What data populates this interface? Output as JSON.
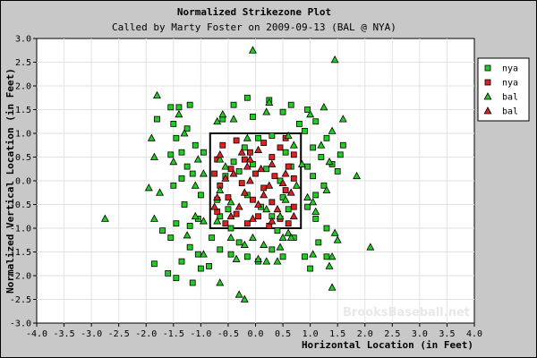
{
  "chart_data": {
    "type": "scatter",
    "title": "Normalized Strikezone Plot",
    "subtitle": "Called by Marty Foster on 2009-09-13 (BAL @ NYA)",
    "xlabel": "Horizontal Location (in Feet)",
    "ylabel": "Normalized Vertical Location (in Feet)",
    "xlim": [
      -4.0,
      4.0
    ],
    "ylim": [
      -3.0,
      3.0
    ],
    "x_ticks": [
      "-4.0",
      "-3.5",
      "-3.0",
      "-2.5",
      "-2.0",
      "-1.5",
      "-1.0",
      "-0.5",
      "0.0",
      "0.5",
      "1.0",
      "1.5",
      "2.0",
      "2.5",
      "3.0",
      "3.5",
      "4.0"
    ],
    "y_ticks": [
      "3.0",
      "2.5",
      "2.0",
      "1.5",
      "1.0",
      "0.5",
      "0.0",
      "-0.5",
      "-1.0",
      "-1.5",
      "-2.0",
      "-2.5",
      "-3.0"
    ],
    "grid": true,
    "legend_position": "top-right",
    "watermark": "BrooksBaseball.net",
    "strike_zone": {
      "x": [
        -0.83,
        0.83
      ],
      "y": [
        -1.0,
        1.0
      ]
    },
    "series": [
      {
        "name": "nya",
        "marker": "square",
        "color": "#22cc22",
        "points": [
          [
            -1.55,
            1.55
          ],
          [
            -1.4,
            1.55
          ],
          [
            -1.2,
            1.6
          ],
          [
            -1.8,
            1.3
          ],
          [
            -1.5,
            1.2
          ],
          [
            -1.25,
            1.1
          ],
          [
            -1.45,
            0.9
          ],
          [
            -1.55,
            0.55
          ],
          [
            -1.35,
            0.6
          ],
          [
            -1.1,
            0.75
          ],
          [
            -0.95,
            0.6
          ],
          [
            -1.25,
            0.3
          ],
          [
            -1.15,
            0.15
          ],
          [
            -1.35,
            0.05
          ],
          [
            -1.5,
            -0.1
          ],
          [
            -1.0,
            -0.3
          ],
          [
            -1.3,
            -0.5
          ],
          [
            -1.05,
            -0.8
          ],
          [
            -1.2,
            -0.95
          ],
          [
            -1.45,
            -0.9
          ],
          [
            -1.7,
            -1.05
          ],
          [
            -1.55,
            -1.2
          ],
          [
            -1.2,
            -1.4
          ],
          [
            -1.05,
            -1.55
          ],
          [
            -1.35,
            -1.7
          ],
          [
            -1.0,
            -1.85
          ],
          [
            -1.85,
            -1.75
          ],
          [
            -1.6,
            -1.95
          ],
          [
            -1.45,
            -2.05
          ],
          [
            -1.15,
            -2.15
          ],
          [
            -0.85,
            -1.8
          ],
          [
            -0.65,
            -1.45
          ],
          [
            -0.45,
            -1.55
          ],
          [
            -0.3,
            -1.3
          ],
          [
            -0.15,
            -1.6
          ],
          [
            0.05,
            -1.7
          ],
          [
            0.3,
            -1.45
          ],
          [
            0.5,
            -1.6
          ],
          [
            0.7,
            -1.2
          ],
          [
            0.4,
            -1.05
          ],
          [
            -0.45,
            -1.0
          ],
          [
            -0.65,
            -0.75
          ],
          [
            -0.7,
            -0.4
          ],
          [
            -0.55,
            0.1
          ],
          [
            -0.4,
            0.4
          ],
          [
            -0.2,
            0.7
          ],
          [
            0.05,
            0.9
          ],
          [
            0.3,
            0.95
          ],
          [
            0.55,
            0.6
          ],
          [
            0.65,
            0.3
          ],
          [
            0.45,
            0.0
          ],
          [
            0.5,
            -0.35
          ],
          [
            0.6,
            -0.6
          ],
          [
            0.3,
            -0.75
          ],
          [
            0.1,
            -0.55
          ],
          [
            -0.15,
            -0.3
          ],
          [
            -0.3,
            0.2
          ],
          [
            -0.05,
            0.35
          ],
          [
            0.2,
            0.25
          ],
          [
            -0.5,
            -0.6
          ],
          [
            0.95,
            1.5
          ],
          [
            1.1,
            1.25
          ],
          [
            0.9,
            1.05
          ],
          [
            1.3,
            0.9
          ],
          [
            1.05,
            0.7
          ],
          [
            1.2,
            0.5
          ],
          [
            0.95,
            0.3
          ],
          [
            1.05,
            0.1
          ],
          [
            1.25,
            -0.1
          ],
          [
            1.1,
            -0.3
          ],
          [
            0.95,
            -0.55
          ],
          [
            1.1,
            -0.8
          ],
          [
            1.3,
            -1.0
          ],
          [
            1.15,
            -1.3
          ],
          [
            1.3,
            -1.6
          ],
          [
            1.0,
            -1.85
          ],
          [
            1.55,
            0.55
          ],
          [
            1.6,
            0.75
          ],
          [
            1.4,
            0.35
          ],
          [
            1.5,
            0.2
          ],
          [
            -0.6,
            1.3
          ],
          [
            -0.4,
            1.6
          ],
          [
            -0.15,
            1.75
          ],
          [
            -0.05,
            1.35
          ],
          [
            0.25,
            1.7
          ],
          [
            0.5,
            1.45
          ],
          [
            0.8,
            1.2
          ],
          [
            0.65,
            1.6
          ],
          [
            0.9,
            -1.6
          ],
          [
            -0.8,
            -1.2
          ]
        ]
      },
      {
        "name": "nya",
        "marker": "square",
        "color": "#dd2222",
        "points": [
          [
            -0.6,
            0.75
          ],
          [
            -0.35,
            0.85
          ],
          [
            0.15,
            0.8
          ],
          [
            0.45,
            0.7
          ],
          [
            0.7,
            0.55
          ],
          [
            -0.7,
            0.45
          ],
          [
            -0.2,
            0.45
          ],
          [
            0.3,
            0.5
          ],
          [
            0.6,
            0.3
          ],
          [
            -0.75,
            0.15
          ],
          [
            -0.45,
            0.25
          ],
          [
            0.0,
            0.15
          ],
          [
            0.35,
            0.1
          ],
          [
            0.7,
            0.05
          ],
          [
            -0.65,
            -0.1
          ],
          [
            -0.25,
            -0.05
          ],
          [
            0.15,
            -0.15
          ],
          [
            0.55,
            -0.2
          ],
          [
            -0.5,
            -0.35
          ],
          [
            -0.05,
            -0.4
          ],
          [
            0.3,
            -0.45
          ],
          [
            0.7,
            -0.55
          ],
          [
            -0.7,
            -0.65
          ],
          [
            -0.35,
            -0.7
          ],
          [
            0.05,
            -0.75
          ],
          [
            0.45,
            -0.8
          ],
          [
            -0.15,
            -0.9
          ],
          [
            0.25,
            -0.95
          ],
          [
            0.6,
            -0.9
          ],
          [
            -0.55,
            -0.9
          ],
          [
            -0.1,
            0.6
          ],
          [
            0.55,
            0.9
          ]
        ]
      },
      {
        "name": "bal",
        "marker": "triangle",
        "color": "#22cc22",
        "points": [
          [
            -1.8,
            1.8
          ],
          [
            -1.9,
            0.9
          ],
          [
            -1.85,
            0.5
          ],
          [
            -1.95,
            -0.15
          ],
          [
            -1.75,
            -0.25
          ],
          [
            -1.5,
            0.4
          ],
          [
            -1.4,
            1.4
          ],
          [
            -1.3,
            1.0
          ],
          [
            -1.05,
            0.45
          ],
          [
            -0.95,
            0.15
          ],
          [
            -1.1,
            -0.1
          ],
          [
            -1.85,
            -0.8
          ],
          [
            -2.75,
            -0.8
          ],
          [
            -1.1,
            -0.75
          ],
          [
            -0.95,
            -0.85
          ],
          [
            -0.45,
            -1.2
          ],
          [
            -0.2,
            -1.35
          ],
          [
            -0.35,
            -1.65
          ],
          [
            -0.65,
            -2.15
          ],
          [
            -0.3,
            -2.4
          ],
          [
            -0.2,
            -2.5
          ],
          [
            0.05,
            -1.65
          ],
          [
            0.2,
            -1.7
          ],
          [
            0.45,
            -1.4
          ],
          [
            0.5,
            -1.2
          ],
          [
            0.6,
            -1.1
          ],
          [
            0.2,
            -0.6
          ],
          [
            0.45,
            -0.75
          ],
          [
            0.55,
            -0.4
          ],
          [
            0.75,
            -0.1
          ],
          [
            0.85,
            0.35
          ],
          [
            0.7,
            0.75
          ],
          [
            0.6,
            0.95
          ],
          [
            0.2,
            1.45
          ],
          [
            0.25,
            1.65
          ],
          [
            -0.4,
            1.3
          ],
          [
            -0.15,
            0.9
          ],
          [
            -0.6,
            1.4
          ],
          [
            -0.7,
            1.25
          ],
          [
            -0.65,
            0.45
          ],
          [
            -0.55,
            0.3
          ],
          [
            -0.65,
            -0.2
          ],
          [
            -0.45,
            -0.45
          ],
          [
            -0.7,
            -0.85
          ],
          [
            1.0,
            1.4
          ],
          [
            1.25,
            1.55
          ],
          [
            1.6,
            1.3
          ],
          [
            1.4,
            1.05
          ],
          [
            1.2,
            0.75
          ],
          [
            1.35,
            0.4
          ],
          [
            1.85,
            0.1
          ],
          [
            1.3,
            -0.2
          ],
          [
            1.05,
            -0.45
          ],
          [
            1.1,
            -0.65
          ],
          [
            1.45,
            -1.1
          ],
          [
            1.5,
            -1.25
          ],
          [
            1.4,
            -1.6
          ],
          [
            1.35,
            -1.8
          ],
          [
            1.4,
            -2.25
          ],
          [
            1.05,
            -1.55
          ],
          [
            2.1,
            -1.4
          ],
          [
            1.45,
            2.55
          ],
          [
            -0.05,
            2.75
          ],
          [
            0.4,
            -1.7
          ],
          [
            -0.05,
            -1.2
          ],
          [
            0.15,
            -1.35
          ],
          [
            -1.25,
            -1.15
          ],
          [
            -0.95,
            -1.55
          ],
          [
            0.65,
            -1.2
          ],
          [
            0.95,
            -0.35
          ]
        ]
      },
      {
        "name": "bal",
        "marker": "triangle",
        "color": "#dd2222",
        "points": [
          [
            -0.65,
            0.55
          ],
          [
            -0.25,
            0.6
          ],
          [
            -0.1,
            0.45
          ],
          [
            0.3,
            0.35
          ],
          [
            0.55,
            0.15
          ],
          [
            -0.55,
            0.05
          ],
          [
            -0.1,
            0.0
          ],
          [
            0.25,
            -0.1
          ],
          [
            0.65,
            -0.25
          ],
          [
            -0.7,
            -0.35
          ],
          [
            -0.2,
            -0.25
          ],
          [
            0.05,
            -0.5
          ],
          [
            0.4,
            -0.6
          ],
          [
            -0.45,
            -0.75
          ],
          [
            -0.05,
            -0.8
          ],
          [
            0.3,
            -0.85
          ],
          [
            0.7,
            -0.75
          ],
          [
            -0.3,
            -0.55
          ],
          [
            0.1,
            0.25
          ],
          [
            0.05,
            0.65
          ],
          [
            -0.4,
            0.15
          ],
          [
            0.5,
            -0.05
          ],
          [
            -0.75,
            -0.55
          ],
          [
            0.15,
            -0.3
          ],
          [
            -0.15,
            0.3
          ]
        ]
      }
    ]
  }
}
